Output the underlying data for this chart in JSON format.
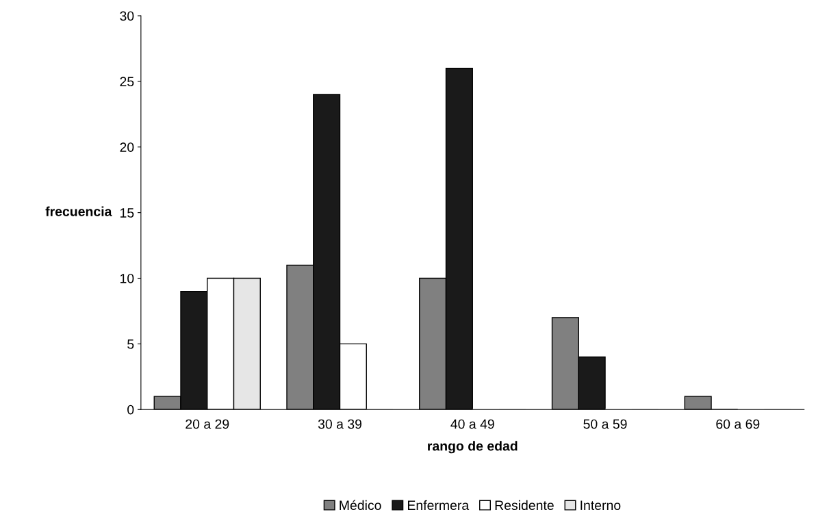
{
  "chart_data": {
    "type": "bar",
    "xlabel": "rango de edad",
    "ylabel": "frecuencia",
    "categories": [
      "20 a 29",
      "30 a 39",
      "40 a 49",
      "50 a 59",
      "60 a 69"
    ],
    "series": [
      {
        "name": "Médico",
        "color": "#808080",
        "values": [
          1,
          11,
          10,
          7,
          1
        ]
      },
      {
        "name": "Enfermera",
        "color": "#1a1a1a",
        "values": [
          9,
          24,
          26,
          4,
          0
        ]
      },
      {
        "name": "Residente",
        "color": "#ffffff",
        "values": [
          10,
          5,
          0,
          0,
          0
        ]
      },
      {
        "name": "Interno",
        "color": "#e6e6e6",
        "values": [
          10,
          0,
          0,
          0,
          0
        ]
      }
    ],
    "ylim": [
      0,
      30
    ],
    "yticks": [
      0,
      5,
      10,
      15,
      20,
      25,
      30
    ],
    "grid": false,
    "legend": "bottom"
  }
}
